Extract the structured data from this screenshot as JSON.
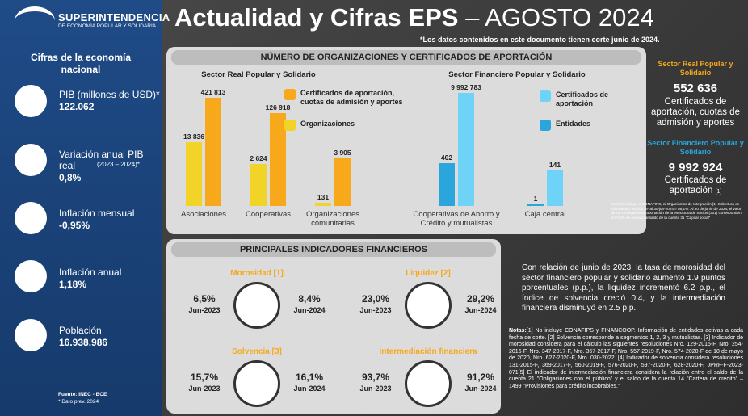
{
  "header": {
    "logo_title": "SUPERINTENDENCIA",
    "logo_subtitle": "DE ECONOMÍA POPULAR Y SOLIDARIA",
    "title_main": "Actualidad y Cifras EPS",
    "title_date": "– AGOSTO 2024",
    "note": "*Los datos contenidos en este documento tienen corte junio de 2024."
  },
  "sidebar": {
    "heading": "Cifras de la economía nacional",
    "items": [
      {
        "label": "PIB (millones de USD)*",
        "value": "122.062"
      },
      {
        "label": "Variación anual PIB real",
        "label_note": "(2023 – 2024)*",
        "value": "0,8%"
      },
      {
        "label": "Inflación mensual",
        "value": "-0,95%"
      },
      {
        "label": "Inflación anual",
        "value": "1,18%"
      },
      {
        "label": "Población",
        "value": "16.938.986"
      }
    ],
    "source": "Fuente: INEC - BCE",
    "source_note": "* Dato prev. 2024"
  },
  "organizations": {
    "title": "NÚMERO DE ORGANIZACIONES Y CERTIFICADOS DE APORTACIÓN"
  },
  "chart_data": [
    {
      "type": "bar",
      "title": "Sector Real Popular y Solidario",
      "log_scale": true,
      "ylim": [
        100,
        450000
      ],
      "categories": [
        "Asociaciones",
        "Cooperativas",
        "Organizaciones comunitarias"
      ],
      "series": [
        {
          "name": "Organizaciones",
          "color": "#f2d327",
          "values": [
            13836,
            2624,
            131
          ],
          "value_labels": [
            "13 836",
            "2 624",
            "131"
          ]
        },
        {
          "name": "Certificados de aportación, cuotas de admisión y aportes",
          "color": "#f7a81b",
          "values": [
            421813,
            126918,
            3905
          ],
          "value_labels": [
            "421 813",
            "126 918",
            "3 905"
          ]
        }
      ]
    },
    {
      "type": "bar",
      "title": "Sector Financiero Popular y Solidario",
      "log_scale": true,
      "ylim": [
        0.8,
        10000000
      ],
      "categories": [
        "Cooperativas de Ahorro y Crédito y mutualistas",
        "Caja central"
      ],
      "series": [
        {
          "name": "Entidades",
          "color": "#2aa6dc",
          "values": [
            402,
            1
          ],
          "value_labels": [
            "402",
            "1"
          ]
        },
        {
          "name": "Certificados de aportación",
          "color": "#6fd3f7",
          "values": [
            9992783,
            141
          ],
          "value_labels": [
            "9 992 783",
            "141"
          ]
        }
      ]
    }
  ],
  "summary": {
    "real": {
      "heading": "Sector Real Popular y Solidario",
      "value": "552 636",
      "text": "Certificados de aportación, cuotas de admisión y aportes"
    },
    "financiero": {
      "heading": "Sector Financiero Popular y Solidario",
      "value": "9 992 924",
      "text": "Certificados de aportación",
      "ref": "[1]"
    },
    "note": "Nota: No incluye a CONAFIPS, ni Organismos de Integración [1] Cobertura de información: Socios SF al 30-jun-2024 = 86,1%. Al 30 de junio de 2024, el valor de los certificados de aportación de la estructura de Socios (301) corresponden al 97,5% en relación al saldo de la cuenta 31 \"Capital social\""
  },
  "indicators": {
    "title": "PRINCIPALES INDICADORES FINANCIEROS",
    "items": [
      {
        "name": "Morosidad [1]",
        "prev": "6,5%",
        "prev_label": "Jun-2023",
        "curr": "8,4%",
        "curr_label": "Jun-2024"
      },
      {
        "name": "Liquidez [2]",
        "prev": "23,0%",
        "prev_label": "Jun-2023",
        "curr": "29,2%",
        "curr_label": "Jun-2024"
      },
      {
        "name": "Solvencia [3]",
        "prev": "15,7%",
        "prev_label": "Jun-2023",
        "curr": "16,1%",
        "curr_label": "Jun-2024"
      },
      {
        "name": "Intermediación financiera",
        "prev": "93,7%",
        "prev_label": "Jun-2023",
        "curr": "91,2%",
        "curr_label": "Jun-2024"
      }
    ],
    "summary": "Con relación de junio de 2023, la tasa de morosidad del sector financiero popular y solidario aumentó 1.9 puntos porcentuales (p.p.), la liquidez incrementó 6.2 p.p., el índice de solvencia creció 0.4, y la intermediación financiera disminuyó en 2.5 p.p.",
    "notes_label": "Notas:",
    "notes": "[1] No incluye CONAFIPS y FINANCOOP. Información de entidades activas a cada fecha de corte. [2] Solvencia corresponde a segmentos 1, 2, 3 y mutualistas. [3] Indicador de morosidad considera para el cálculo las siguientes resoluciones Nro. 129-2015-F, Nro. 254-2016-F, Nro. 347-2017-F, Nro. 367-2017-F, Nro. 557-2019-F, Nro. 574-2020-F de 18 de mayo de 2020, Nro. 627-2020-F, Nro. 030-2022. [4] Indicador de solvencia considera resoluciones 131-2015-F, 369-2017-F, 560-2019-F, 576-2020-F, 597-2020-F, 628-2020-F, JPRF-F-2023-071[5] El indicador de intermediación financiera considera la relación entre el saldo de la cuenta 21 \"Obligaciones con el público\" y el saldo de la cuenta 14 \"Cartera de crédito\" – 1499 \"Provisiones para crédito incobrables.\""
  }
}
